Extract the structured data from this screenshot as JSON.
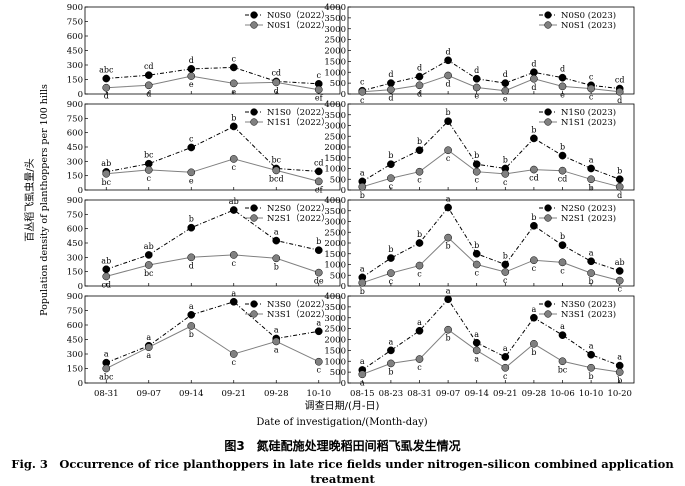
{
  "figure": {
    "ylabel_zh": "百丛稻飞虱虫量/头",
    "ylabel_en": "Population density of planthoppers per 100 hills",
    "xlabel_zh": "调查日期/(月-日)",
    "xlabel_en": "Date of investigation/(Month-day)",
    "caption_zh": "图3　氮硅配施处理晚稻田间稻飞虱发生情况",
    "caption_en": "Fig. 3　Occurrence of rice planthoppers in late rice fields under nitrogen-silicon combined application treatment"
  },
  "chart_data": [
    {
      "type": "line",
      "x": [
        "08-31",
        "09-07",
        "09-14",
        "09-21",
        "09-28",
        "10-10"
      ],
      "ylim": [
        0,
        900
      ],
      "yticks": [
        0,
        150,
        300,
        450,
        600,
        750,
        900
      ],
      "legend_position": "top-right",
      "series": [
        {
          "name": "N0S0（2022）",
          "values": [
            160,
            195,
            260,
            275,
            130,
            105
          ],
          "letters": [
            "abc",
            "cd",
            "d",
            "c",
            "cd",
            "c"
          ],
          "color": "#000000"
        },
        {
          "name": "N0S1（2022）",
          "values": [
            65,
            90,
            185,
            110,
            120,
            45
          ],
          "letters": [
            "d",
            "d",
            "e",
            "e",
            "d",
            "ef"
          ],
          "color": "#808080"
        }
      ]
    },
    {
      "type": "line",
      "x": [
        "08-15",
        "08-23",
        "08-31",
        "09-07",
        "09-14",
        "09-21",
        "09-28",
        "10-06",
        "10-10",
        "10-20"
      ],
      "ylim": [
        0,
        4000
      ],
      "yticks": [
        0,
        500,
        1000,
        1500,
        2000,
        2500,
        3000,
        3500,
        4000
      ],
      "legend_position": "top-right",
      "series": [
        {
          "name": "N0S0 (2023)",
          "values": [
            150,
            500,
            800,
            1550,
            700,
            500,
            1000,
            750,
            400,
            250
          ],
          "letters": [
            "c",
            "d",
            "d",
            "d",
            "d",
            "d",
            "d",
            "d",
            "c",
            "cd"
          ],
          "color": "#000000"
        },
        {
          "name": "N0S1 (2023)",
          "values": [
            100,
            200,
            400,
            850,
            300,
            150,
            700,
            350,
            250,
            100
          ],
          "letters": [
            "c",
            "d",
            "d",
            "d",
            "e",
            "e",
            "d",
            "e",
            "c",
            "d"
          ],
          "color": "#808080"
        }
      ]
    },
    {
      "type": "line",
      "x": [
        "08-31",
        "09-07",
        "09-14",
        "09-21",
        "09-28",
        "10-10"
      ],
      "ylim": [
        0,
        900
      ],
      "yticks": [
        0,
        150,
        300,
        450,
        600,
        750,
        900
      ],
      "legend_position": "top-right",
      "series": [
        {
          "name": "N1S0（2022）",
          "values": [
            190,
            275,
            445,
            665,
            225,
            195
          ],
          "letters": [
            "ab",
            "bc",
            "c",
            "b",
            "bc",
            "cd"
          ],
          "color": "#000000"
        },
        {
          "name": "N1S1（2022）",
          "values": [
            170,
            210,
            185,
            325,
            205,
            90
          ],
          "letters": [
            "bc",
            "c",
            "e",
            "c",
            "bcd",
            "ef"
          ],
          "color": "#808080"
        }
      ]
    },
    {
      "type": "line",
      "x": [
        "08-15",
        "08-23",
        "08-31",
        "09-07",
        "09-14",
        "09-21",
        "09-28",
        "10-06",
        "10-10",
        "10-20"
      ],
      "ylim": [
        0,
        4000
      ],
      "yticks": [
        0,
        500,
        1000,
        1500,
        2000,
        2500,
        3000,
        3500,
        4000
      ],
      "legend_position": "top-right",
      "series": [
        {
          "name": "N1S0 (2023)",
          "values": [
            400,
            1200,
            1850,
            3200,
            1200,
            1000,
            2400,
            1600,
            1000,
            500
          ],
          "letters": [
            "a",
            "b",
            "b",
            "b",
            "b",
            "b",
            "b",
            "b",
            "a",
            "b"
          ],
          "color": "#000000"
        },
        {
          "name": "N1S1 (2023)",
          "values": [
            150,
            550,
            850,
            1850,
            850,
            750,
            950,
            900,
            500,
            150
          ],
          "letters": [
            "b",
            "c",
            "c",
            "c",
            "c",
            "c",
            "cd",
            "cd",
            "b",
            "d"
          ],
          "color": "#808080"
        }
      ]
    },
    {
      "type": "line",
      "x": [
        "08-31",
        "09-07",
        "09-14",
        "09-21",
        "09-28",
        "10-10"
      ],
      "ylim": [
        0,
        900
      ],
      "yticks": [
        0,
        150,
        300,
        450,
        600,
        750,
        900
      ],
      "legend_position": "top-right",
      "series": [
        {
          "name": "N2S0（2022）",
          "values": [
            175,
            325,
            610,
            795,
            475,
            375
          ],
          "letters": [
            "ab",
            "ab",
            "b",
            "ab",
            "a",
            "b"
          ],
          "color": "#000000"
        },
        {
          "name": "N2S1（2022）",
          "values": [
            100,
            220,
            300,
            325,
            290,
            140
          ],
          "letters": [
            "cd",
            "bc",
            "d",
            "c",
            "b",
            "de"
          ],
          "color": "#808080"
        }
      ]
    },
    {
      "type": "line",
      "x": [
        "08-15",
        "08-23",
        "08-31",
        "09-07",
        "09-14",
        "09-21",
        "09-28",
        "10-06",
        "10-10",
        "10-20"
      ],
      "ylim": [
        0,
        4000
      ],
      "yticks": [
        0,
        500,
        1000,
        1500,
        2000,
        2500,
        3000,
        3500,
        4000
      ],
      "legend_position": "top-right",
      "series": [
        {
          "name": "N2S0 (2023)",
          "values": [
            400,
            1300,
            2000,
            3650,
            1500,
            1000,
            2800,
            1900,
            1150,
            700
          ],
          "letters": [
            "a",
            "b",
            "b",
            "a",
            "b",
            "b",
            "b",
            "b",
            "a",
            "ab"
          ],
          "color": "#000000"
        },
        {
          "name": "N2S1 (2023)",
          "values": [
            150,
            600,
            950,
            2250,
            1000,
            650,
            1200,
            1100,
            600,
            250
          ],
          "letters": [
            "b",
            "c",
            "c",
            "b",
            "c",
            "c",
            "c",
            "c",
            "b",
            "c"
          ],
          "color": "#808080"
        }
      ]
    },
    {
      "type": "line",
      "x": [
        "08-31",
        "09-07",
        "09-14",
        "09-21",
        "09-28",
        "10-10"
      ],
      "ylim": [
        0,
        900
      ],
      "yticks": [
        0,
        150,
        300,
        450,
        600,
        750,
        900
      ],
      "legend_position": "top-right",
      "series": [
        {
          "name": "N3S0（2022）",
          "values": [
            210,
            385,
            705,
            840,
            460,
            535
          ],
          "letters": [
            "a",
            "a",
            "a",
            "a",
            "a",
            "a"
          ],
          "color": "#000000"
        },
        {
          "name": "N3S1（2022）",
          "values": [
            150,
            370,
            590,
            300,
            430,
            220
          ],
          "letters": [
            "abc",
            "a",
            "b",
            "c",
            "a",
            "c"
          ],
          "color": "#808080"
        }
      ]
    },
    {
      "type": "line",
      "x": [
        "08-15",
        "08-23",
        "08-31",
        "09-07",
        "09-14",
        "09-21",
        "09-28",
        "10-06",
        "10-10",
        "10-20"
      ],
      "ylim": [
        0,
        4000
      ],
      "yticks": [
        0,
        500,
        1000,
        1500,
        2000,
        2500,
        3000,
        3500,
        4000
      ],
      "legend_position": "top-right",
      "series": [
        {
          "name": "N3S0 (2023)",
          "values": [
            600,
            1500,
            2400,
            3850,
            1850,
            1200,
            3000,
            2200,
            1300,
            800
          ],
          "letters": [
            "a",
            "a",
            "a",
            "a",
            "a",
            "a",
            "a",
            "a",
            "a",
            "a"
          ],
          "color": "#000000"
        },
        {
          "name": "N3S1 (2023)",
          "values": [
            400,
            900,
            1100,
            2450,
            1500,
            700,
            1800,
            1000,
            700,
            500
          ],
          "letters": [
            "a",
            "b",
            "c",
            "b",
            "a",
            "c",
            "b",
            "bc",
            "b",
            "b"
          ],
          "color": "#808080"
        }
      ]
    }
  ]
}
